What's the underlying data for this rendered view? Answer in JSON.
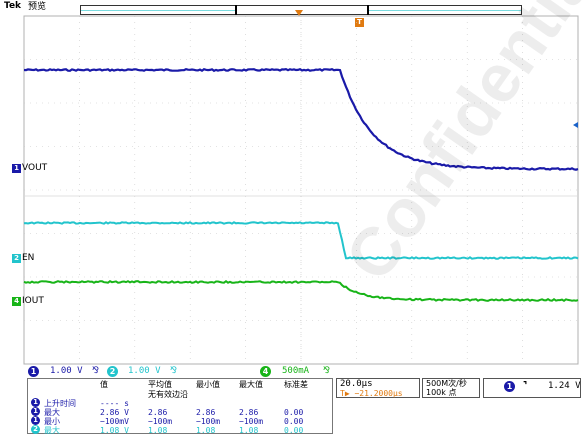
{
  "header": {
    "brand": "Tek",
    "mode": "预览"
  },
  "trigger_marker": "T",
  "channels": [
    {
      "num": "1",
      "label": "VOUT",
      "color": "#1a1aa8"
    },
    {
      "num": "2",
      "label": "EN",
      "color": "#22c4cc"
    },
    {
      "num": "4",
      "label": "IOUT",
      "color": "#18b418"
    }
  ],
  "status": {
    "ch1_scale": "1.00 V",
    "ch2_scale": "1.00 V",
    "ch4_scale": "500mA",
    "bw_symbol": "⅋"
  },
  "measurements": {
    "columns": [
      "值",
      "平均值",
      "最小值",
      "最大值",
      "标准差"
    ],
    "note": "无有效边沿",
    "rows": [
      {
        "badge": "1",
        "name": "上升时间",
        "values": [
          "---- s",
          "",
          "",
          "",
          ""
        ],
        "color": "#1a1aa8"
      },
      {
        "badge": "1",
        "name": "最大",
        "values": [
          "2.86 V",
          "2.86",
          "2.86",
          "2.86",
          "0.00"
        ],
        "color": "#1a1aa8"
      },
      {
        "badge": "1",
        "name": "最小",
        "values": [
          "−100mV",
          "−100m",
          "−100m",
          "−100m",
          "0.00"
        ],
        "color": "#1a1aa8"
      },
      {
        "badge": "2",
        "name": "最大",
        "values": [
          "1.08 V",
          "1.08",
          "1.08",
          "1.08",
          "0.00"
        ],
        "color": "#22c4cc"
      }
    ]
  },
  "horizontal": {
    "timebase": "20.0µs",
    "delay": "T▶ −21.2000µs"
  },
  "acquisition": {
    "rate": "500M次/秒",
    "points": "100k 点"
  },
  "trigger": {
    "channel": "1",
    "slope": "⌝",
    "level": "1.24 V"
  },
  "watermark": "Confidential",
  "colors": {
    "ch1": "#1a1aa8",
    "ch2": "#22c4cc",
    "ch4": "#18b418",
    "trigger": "#e07a10"
  }
}
